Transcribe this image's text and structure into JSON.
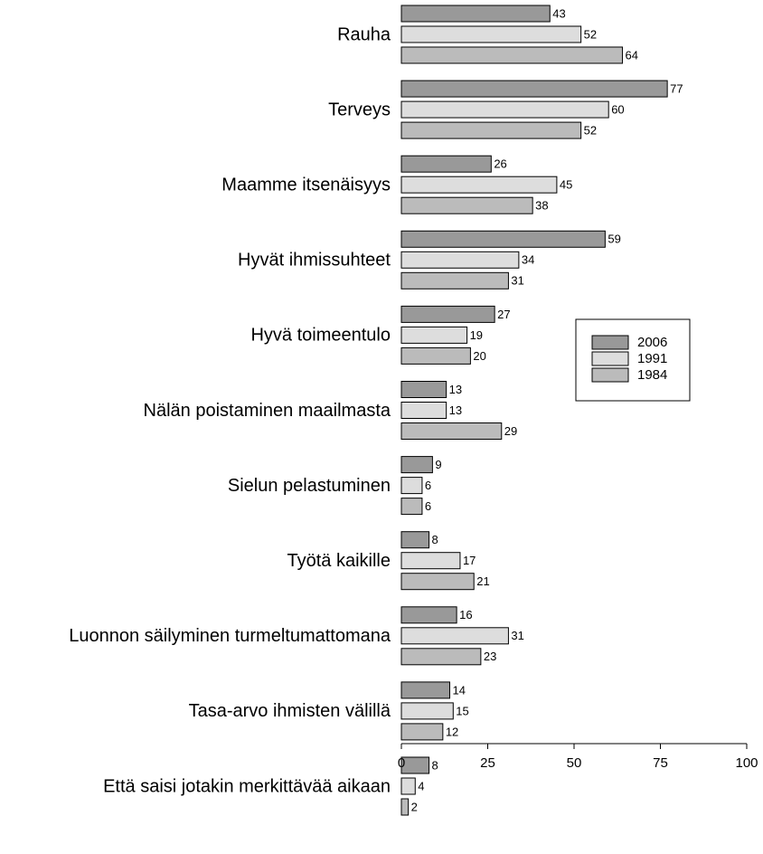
{
  "chart_data": {
    "type": "bar",
    "orientation": "horizontal",
    "categories": [
      "Rauha",
      "Terveys",
      "Maamme itsenäisyys",
      "Hyvät ihmissuhteet",
      "Hyvä toimeentulo",
      "Nälän poistaminen maailmasta",
      "Sielun pelastuminen",
      "Työtä kaikille",
      "Luonnon säilyminen turmeltumattomana",
      "Tasa-arvo ihmisten välillä",
      "Että saisi jotakin merkittävää aikaan"
    ],
    "series": [
      {
        "name": "2006",
        "color": "#999999",
        "values": [
          43,
          77,
          26,
          59,
          27,
          13,
          9,
          8,
          16,
          14,
          8
        ]
      },
      {
        "name": "1991",
        "color": "#dddddd",
        "values": [
          52,
          60,
          45,
          34,
          19,
          13,
          6,
          17,
          31,
          15,
          4
        ]
      },
      {
        "name": "1984",
        "color": "#bbbbbb",
        "values": [
          64,
          52,
          38,
          31,
          20,
          29,
          6,
          21,
          23,
          12,
          2
        ]
      }
    ],
    "xlim": [
      0,
      100
    ],
    "xticks": [
      0,
      25,
      50,
      75,
      100
    ],
    "legend": "right"
  }
}
